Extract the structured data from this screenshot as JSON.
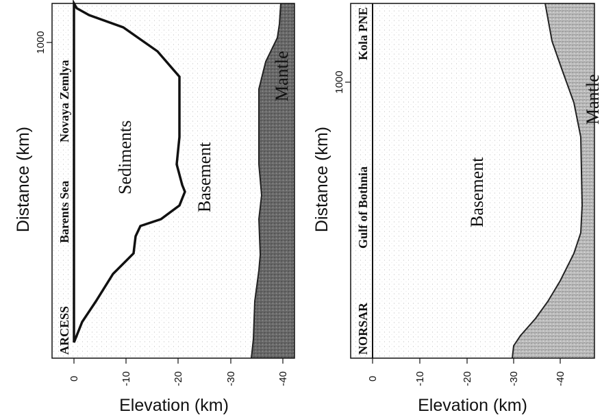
{
  "panels": [
    {
      "distance_label": "Distance (km)",
      "elevation_label": "Elevation (km)",
      "elevation_ticks": [
        "0",
        "-10",
        "-20",
        "-30",
        "-40"
      ],
      "distance_ticks": [
        "1000"
      ],
      "sites": [
        "ARCESS",
        "Barents Sea",
        "Novaya Zemlya"
      ],
      "regions": [
        "Sediments",
        "Basement",
        "Mantle"
      ]
    },
    {
      "distance_label": "Distance (km)",
      "elevation_label": "Elevation (km)",
      "elevation_ticks": [
        "0",
        "-10",
        "-20",
        "-30",
        "-40"
      ],
      "distance_ticks": [
        "1000"
      ],
      "sites": [
        "NORSAR",
        "Gulf of Bothnia",
        "Kola PNE"
      ],
      "regions": [
        "Basement",
        "Mantle"
      ]
    }
  ],
  "colors": {
    "mantle": "#5a5a5a",
    "basement": "#ececec",
    "sediment_boundary": "#000000"
  }
}
